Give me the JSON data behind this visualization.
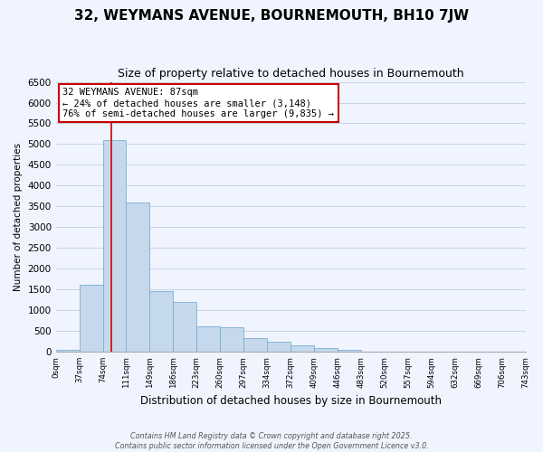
{
  "title": "32, WEYMANS AVENUE, BOURNEMOUTH, BH10 7JW",
  "subtitle": "Size of property relative to detached houses in Bournemouth",
  "xlabel": "Distribution of detached houses by size in Bournemouth",
  "ylabel": "Number of detached properties",
  "bar_values": [
    50,
    1600,
    5100,
    3600,
    1450,
    1200,
    600,
    580,
    330,
    230,
    150,
    80,
    50,
    0,
    0,
    0,
    0,
    0,
    0,
    0
  ],
  "bin_labels": [
    "0sqm",
    "37sqm",
    "74sqm",
    "111sqm",
    "149sqm",
    "186sqm",
    "223sqm",
    "260sqm",
    "297sqm",
    "334sqm",
    "372sqm",
    "409sqm",
    "446sqm",
    "483sqm",
    "520sqm",
    "557sqm",
    "594sqm",
    "632sqm",
    "669sqm",
    "706sqm",
    "743sqm"
  ],
  "bar_color": "#c5d8ec",
  "bar_edge_color": "#7aafd4",
  "vline_color": "#cc0000",
  "annotation_title": "32 WEYMANS AVENUE: 87sqm",
  "annotation_line1": "← 24% of detached houses are smaller (3,148)",
  "annotation_line2": "76% of semi-detached houses are larger (9,835) →",
  "annotation_box_color": "#ffffff",
  "annotation_box_edge": "#cc0000",
  "ylim": [
    0,
    6500
  ],
  "yticks": [
    0,
    500,
    1000,
    1500,
    2000,
    2500,
    3000,
    3500,
    4000,
    4500,
    5000,
    5500,
    6000,
    6500
  ],
  "footer_line1": "Contains HM Land Registry data © Crown copyright and database right 2025.",
  "footer_line2": "Contains public sector information licensed under the Open Government Licence v3.0.",
  "bg_color": "#f0f4ff",
  "grid_color": "#c8d4e8"
}
